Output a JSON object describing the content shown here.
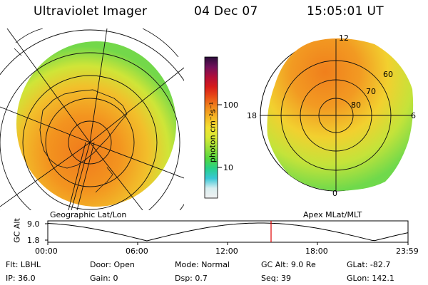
{
  "header": {
    "instrument": "Ultraviolet Imager",
    "date": "04 Dec 07",
    "time": "15:05:01 UT"
  },
  "colorbar": {
    "unit_label": "photon cm⁻²s⁻¹",
    "ticks": [
      "100",
      "10"
    ],
    "colors": [
      "#f2f2f2",
      "#d7eef0",
      "#38c7d6",
      "#27d08a",
      "#53d83e",
      "#9ee23a",
      "#d9ea34",
      "#f3e132",
      "#f5b825",
      "#f18b1c",
      "#e84b16",
      "#d61a1a",
      "#b00e3a",
      "#70105a",
      "#2a0d3a"
    ]
  },
  "left_panel": {
    "label": "Geographic Lat/Lon"
  },
  "right_panel": {
    "label": "Apex MLat/MLT",
    "mlt_labels": {
      "top": "12",
      "left": "18",
      "right": "6",
      "bottom": "0"
    },
    "mlat_labels": [
      "60",
      "70",
      "80"
    ]
  },
  "altitude_plot": {
    "ylabel": "GC Alt",
    "yticks": [
      "9.0",
      "1.8"
    ],
    "xticks": [
      "00:00",
      "06:00",
      "12:00",
      "18:00",
      "23:59"
    ],
    "marker_color": "#e00000"
  },
  "footer": {
    "row1": [
      {
        "label": "Flt:",
        "value": "LBHL"
      },
      {
        "label": "Door:",
        "value": "Open"
      },
      {
        "label": "Mode:",
        "value": "Normal"
      },
      {
        "label": "GC Alt:",
        "value": "9.0 Re"
      },
      {
        "label": "GLat:",
        "value": "-82.7"
      }
    ],
    "row2": [
      {
        "label": "IP:",
        "value": "36.0"
      },
      {
        "label": "Gain:",
        "value": "0"
      },
      {
        "label": "Dsp:",
        "value": "0.7"
      },
      {
        "label": "Seq:",
        "value": "39"
      },
      {
        "label": "GLon:",
        "value": "142.1"
      }
    ]
  }
}
